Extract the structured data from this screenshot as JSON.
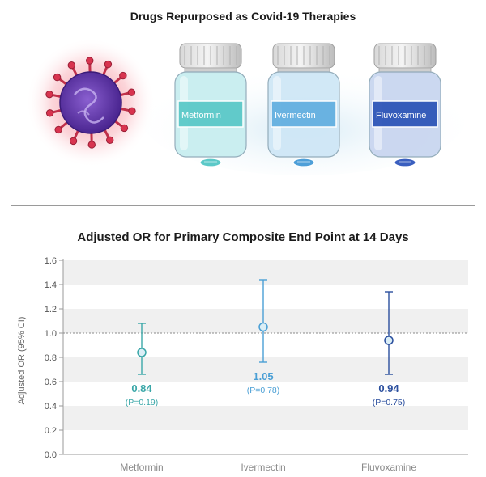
{
  "header": {
    "title": "Drugs Repurposed as Covid-19 Therapies"
  },
  "bottles": [
    {
      "label": "Metformin",
      "label_color": "#5cc9c8",
      "body_color": "#c8eef0",
      "pill_color": "#5cc9c8"
    },
    {
      "label": "Ivermectin",
      "label_color": "#64b0e0",
      "body_color": "#cfe7f6",
      "pill_color": "#4e9fd8"
    },
    {
      "label": "Fluvoxamine",
      "label_color": "#2f56b8",
      "body_color": "#c9d6f0",
      "pill_color": "#3a5fbf"
    }
  ],
  "chart_data": {
    "type": "scatter",
    "title": "Adjusted OR for Primary Composite End Point at 14 Days",
    "xlabel": "",
    "ylabel": "Adjusted OR (95% CI)",
    "ylim": [
      0.0,
      1.6
    ],
    "yticks": [
      "0.0",
      "0.2",
      "0.4",
      "0.6",
      "0.8",
      "1.0",
      "1.2",
      "1.4",
      "1.6"
    ],
    "reference_line": 1.0,
    "categories": [
      "Metformin",
      "Ivermectin",
      "Fluvoxamine"
    ],
    "values": [
      0.84,
      1.05,
      0.94
    ],
    "ci_lower": [
      0.66,
      0.76,
      0.66
    ],
    "ci_upper": [
      1.08,
      1.44,
      1.34
    ],
    "value_labels": [
      "0.84",
      "1.05",
      "0.94"
    ],
    "p_labels": [
      "(P=0.19)",
      "(P=0.78)",
      "(P=0.75)"
    ],
    "colors": [
      "#3aa7a8",
      "#4a9fd5",
      "#2b4f9e"
    ],
    "grid": "alternating horizontal bands"
  }
}
